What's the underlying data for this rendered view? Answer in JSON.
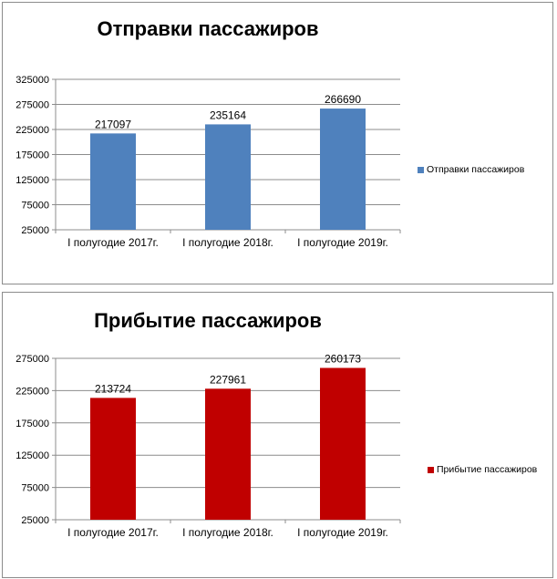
{
  "chart_data": [
    {
      "type": "bar",
      "title": "Отправки пассажиров",
      "categories": [
        "I полугодие 2017г.",
        "I полугодие 2018г.",
        "I полугодие 2019г."
      ],
      "series": [
        {
          "name": "Отправки пассажиров",
          "values": [
            217097,
            235164,
            266690
          ],
          "color": "#4f81bd"
        }
      ],
      "yticks": [
        "25000",
        "75000",
        "125000",
        "175000",
        "225000",
        "275000",
        "325000"
      ],
      "ylim": [
        25000,
        325000
      ],
      "grid": true,
      "legend": "right"
    },
    {
      "type": "bar",
      "title": "Прибытие пассажиров",
      "categories": [
        "I полугодие 2017г.",
        "I полугодие 2018г.",
        "I полугодие 2019г."
      ],
      "series": [
        {
          "name": "Прибытие пассажиров",
          "values": [
            213724,
            227961,
            260173
          ],
          "color": "#c00000"
        }
      ],
      "yticks": [
        "25000",
        "75000",
        "125000",
        "175000",
        "225000",
        "275000"
      ],
      "ylim": [
        25000,
        275000
      ],
      "grid": true,
      "legend": "right"
    }
  ]
}
